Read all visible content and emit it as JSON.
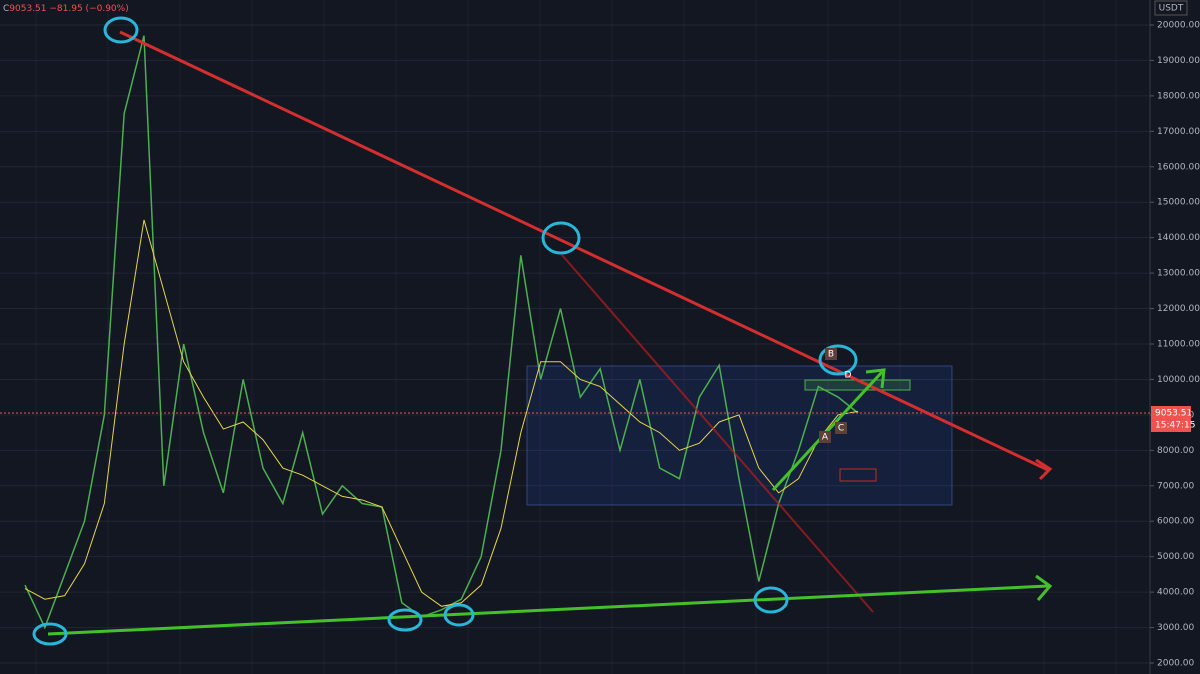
{
  "chart_data": {
    "type": "line",
    "symbol_prefix": "C",
    "last_price": 9053.51,
    "change_text": "−81.95 (−0.90%)",
    "currency": "USDT",
    "countdown": "15:47:15",
    "pattern_labels": [
      "B",
      "D",
      "A",
      "C"
    ],
    "series": [
      {
        "color": "#4caf50",
        "values": [
          4200,
          3000,
          4500,
          6000,
          9000,
          17500,
          19700,
          7000,
          11000,
          8500,
          6800,
          10000,
          7500,
          6500,
          8500,
          6200,
          7000,
          6500,
          6400,
          3700,
          3300,
          3500,
          3800,
          5000,
          8000,
          13500,
          10000,
          12000,
          9500,
          10300,
          8000,
          10000,
          7500,
          7200,
          9500,
          10400,
          7200,
          4300,
          6500,
          8000,
          9800,
          9500,
          9053.51
        ]
      },
      {
        "color": "#e5d54a",
        "values": [
          4100,
          3800,
          3900,
          4800,
          6500,
          11000,
          14500,
          12500,
          10500,
          9500,
          8600,
          8800,
          8300,
          7500,
          7300,
          7000,
          6700,
          6600,
          6400,
          5200,
          4000,
          3600,
          3700,
          4200,
          5800,
          8500,
          10500,
          10500,
          10000,
          9800,
          9300,
          8800,
          8500,
          8000,
          8200,
          8800,
          9000,
          7500,
          6800,
          7200,
          8300,
          9000,
          9100
        ]
      }
    ],
    "ylim": [
      1690,
      20705
    ],
    "yticks": [
      {
        "value": 2000,
        "label": "2000.00"
      },
      {
        "value": 3000,
        "label": "3000.00"
      },
      {
        "value": 4000,
        "label": "4000.00"
      },
      {
        "value": 5000,
        "label": "5000.00"
      },
      {
        "value": 6000,
        "label": "6000.00"
      },
      {
        "value": 7000,
        "label": "7000.00"
      },
      {
        "value": 8000,
        "label": "8000.00"
      },
      {
        "value": 9000,
        "label": "9000.00"
      },
      {
        "value": 10000,
        "label": "10000.00"
      },
      {
        "value": 11000,
        "label": "11000.00"
      },
      {
        "value": 12000,
        "label": "12000.00"
      },
      {
        "value": 13000,
        "label": "13000.00"
      },
      {
        "value": 14000,
        "label": "14000.00"
      },
      {
        "value": 15000,
        "label": "15000.00"
      },
      {
        "value": 16000,
        "label": "16000.00"
      },
      {
        "value": 17000,
        "label": "17000.00"
      },
      {
        "value": 18000,
        "label": "18000.00"
      },
      {
        "value": 19000,
        "label": "19000.00"
      },
      {
        "value": 20000,
        "label": "20000.00"
      }
    ],
    "grid": true
  }
}
